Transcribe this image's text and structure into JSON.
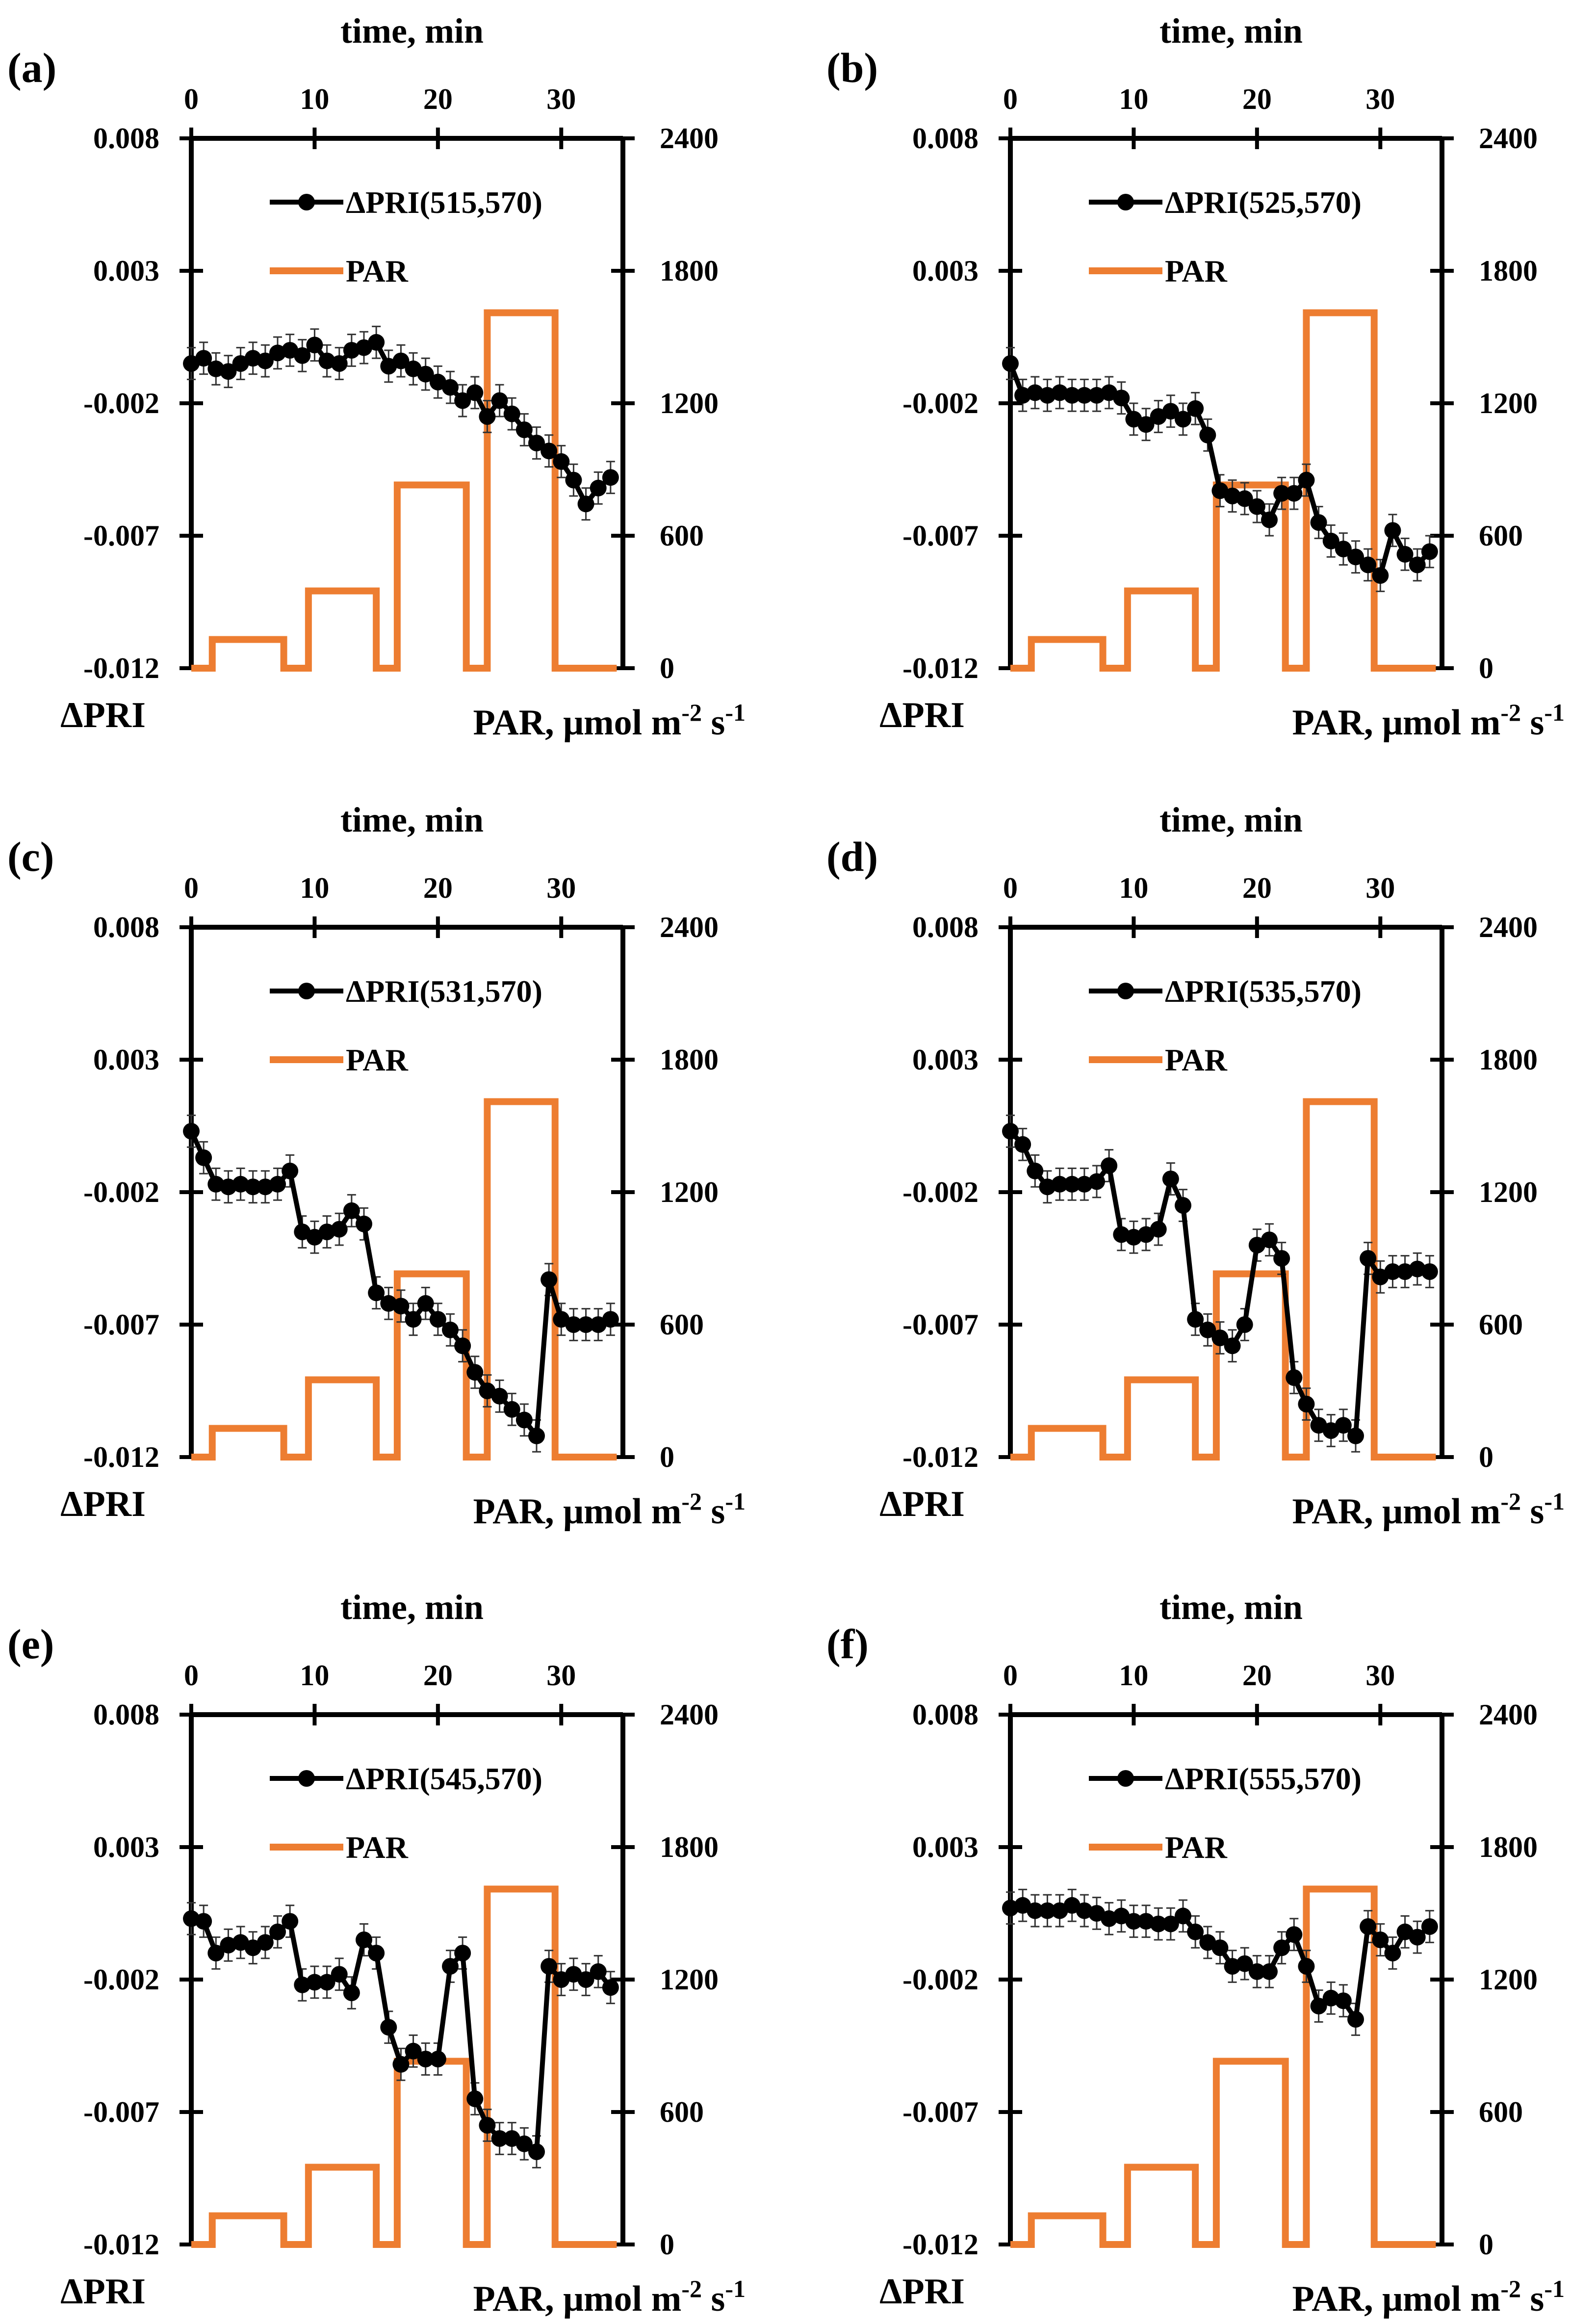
{
  "chart_data": [
    {
      "panel_label": "(a)",
      "type": "line",
      "top_axis_label": "time, min",
      "x_ticks": [
        "0",
        "10",
        "20",
        "30"
      ],
      "xlim": [
        0,
        35
      ],
      "left_axis_label": "ΔPRI",
      "left_ticks": [
        "0.008",
        "0.003",
        "-0.002",
        "-0.007",
        "-0.012"
      ],
      "ylim_left": [
        -0.012,
        0.008
      ],
      "right_axis_label": "PAR, μmol m-2 s-1",
      "right_ticks": [
        "2400",
        "1800",
        "1200",
        "600",
        "0"
      ],
      "ylim_right": [
        0,
        2400
      ],
      "legend": {
        "pri": "ΔPRI(515,570)",
        "par": "PAR"
      },
      "series": [
        {
          "name": "ΔPRI(515,570)",
          "color": "#000000",
          "x": [
            0,
            1,
            2,
            3,
            4,
            5,
            6,
            7,
            8,
            9,
            10,
            11,
            12,
            13,
            14,
            15,
            16,
            17,
            18,
            19,
            20,
            21,
            22,
            23,
            24,
            25,
            26,
            27,
            28,
            29,
            30,
            31,
            32,
            33,
            34
          ],
          "y": [
            -0.0005,
            -0.0003,
            -0.0007,
            -0.0008,
            -0.0005,
            -0.0003,
            -0.0004,
            -0.0001,
            0.0,
            -0.0002,
            0.0002,
            -0.0004,
            -0.0005,
            0.0,
            0.0001,
            0.0003,
            -0.0006,
            -0.0004,
            -0.0007,
            -0.0009,
            -0.0012,
            -0.0014,
            -0.0019,
            -0.0016,
            -0.0025,
            -0.0019,
            -0.0024,
            -0.003,
            -0.0035,
            -0.0038,
            -0.0042,
            -0.0049,
            -0.0058,
            -0.0052,
            -0.0048
          ]
        },
        {
          "name": "PAR",
          "color": "#ED7D31",
          "type": "step",
          "x": [
            0,
            1.7,
            1.7,
            7.5,
            7.5,
            9.5,
            9.5,
            15,
            15,
            16.7,
            16.7,
            22.3,
            22.3,
            24,
            24,
            29.5,
            29.5,
            34.5
          ],
          "y": [
            0,
            0,
            130,
            130,
            0,
            0,
            350,
            350,
            0,
            0,
            830,
            830,
            0,
            0,
            1610,
            1610,
            0,
            0
          ]
        }
      ]
    },
    {
      "panel_label": "(b)",
      "type": "line",
      "top_axis_label": "time, min",
      "x_ticks": [
        "0",
        "10",
        "20",
        "30"
      ],
      "xlim": [
        0,
        35
      ],
      "left_axis_label": "ΔPRI",
      "left_ticks": [
        "0.008",
        "0.003",
        "-0.002",
        "-0.007",
        "-0.012"
      ],
      "ylim_left": [
        -0.012,
        0.008
      ],
      "right_axis_label": "PAR, μmol m-2 s-1",
      "right_ticks": [
        "2400",
        "1800",
        "1200",
        "600",
        "0"
      ],
      "ylim_right": [
        0,
        2400
      ],
      "legend": {
        "pri": "ΔPRI(525,570)",
        "par": "PAR"
      },
      "series": [
        {
          "name": "ΔPRI(525,570)",
          "color": "#000000",
          "x": [
            0,
            1,
            2,
            3,
            4,
            5,
            6,
            7,
            8,
            9,
            10,
            11,
            12,
            13,
            14,
            15,
            16,
            17,
            18,
            19,
            20,
            21,
            22,
            23,
            24,
            25,
            26,
            27,
            28,
            29,
            30,
            31,
            32,
            33,
            34
          ],
          "y": [
            -0.0005,
            -0.0017,
            -0.0016,
            -0.0017,
            -0.0016,
            -0.0017,
            -0.0017,
            -0.0017,
            -0.0016,
            -0.0018,
            -0.0026,
            -0.0028,
            -0.0025,
            -0.0023,
            -0.0026,
            -0.0022,
            -0.0032,
            -0.0053,
            -0.0055,
            -0.0056,
            -0.0059,
            -0.0064,
            -0.0054,
            -0.0054,
            -0.0049,
            -0.0065,
            -0.0072,
            -0.0075,
            -0.0078,
            -0.0081,
            -0.0085,
            -0.0068,
            -0.0077,
            -0.0081,
            -0.0076
          ]
        },
        {
          "name": "PAR",
          "color": "#ED7D31",
          "type": "step",
          "x": [
            0,
            1.7,
            1.7,
            7.5,
            7.5,
            9.5,
            9.5,
            15,
            15,
            16.7,
            16.7,
            22.3,
            22.3,
            24,
            24,
            29.5,
            29.5,
            34.5
          ],
          "y": [
            0,
            0,
            130,
            130,
            0,
            0,
            350,
            350,
            0,
            0,
            830,
            830,
            0,
            0,
            1610,
            1610,
            0,
            0
          ]
        }
      ]
    },
    {
      "panel_label": "(c)",
      "type": "line",
      "top_axis_label": "time, min",
      "x_ticks": [
        "0",
        "10",
        "20",
        "30"
      ],
      "xlim": [
        0,
        35
      ],
      "left_axis_label": "ΔPRI",
      "left_ticks": [
        "0.008",
        "0.003",
        "-0.002",
        "-0.007",
        "-0.012"
      ],
      "ylim_left": [
        -0.012,
        0.008
      ],
      "right_axis_label": "PAR, μmol m-2 s-1",
      "right_ticks": [
        "2400",
        "1800",
        "1200",
        "600",
        "0"
      ],
      "ylim_right": [
        0,
        2400
      ],
      "legend": {
        "pri": "ΔPRI(531,570)",
        "par": "PAR"
      },
      "series": [
        {
          "name": "ΔPRI(531,570)",
          "color": "#000000",
          "x": [
            0,
            1,
            2,
            3,
            4,
            5,
            6,
            7,
            8,
            9,
            10,
            11,
            12,
            13,
            14,
            15,
            16,
            17,
            18,
            19,
            20,
            21,
            22,
            23,
            24,
            25,
            26,
            27,
            28,
            29,
            30,
            31,
            32,
            33,
            34
          ],
          "y": [
            0.0003,
            -0.0007,
            -0.0017,
            -0.0018,
            -0.0017,
            -0.0018,
            -0.0018,
            -0.0017,
            -0.0012,
            -0.0035,
            -0.0037,
            -0.0035,
            -0.0034,
            -0.0027,
            -0.0032,
            -0.0058,
            -0.0062,
            -0.0063,
            -0.0068,
            -0.0062,
            -0.0068,
            -0.0072,
            -0.0078,
            -0.0088,
            -0.0095,
            -0.0097,
            -0.0102,
            -0.0106,
            -0.0112,
            -0.0053,
            -0.0068,
            -0.007,
            -0.007,
            -0.007,
            -0.0068
          ]
        },
        {
          "name": "PAR",
          "color": "#ED7D31",
          "type": "step",
          "x": [
            0,
            1.7,
            1.7,
            7.5,
            7.5,
            9.5,
            9.5,
            15,
            15,
            16.7,
            16.7,
            22.3,
            22.3,
            24,
            24,
            29.5,
            29.5,
            34.5
          ],
          "y": [
            0,
            0,
            130,
            130,
            0,
            0,
            350,
            350,
            0,
            0,
            830,
            830,
            0,
            0,
            1610,
            1610,
            0,
            0
          ]
        }
      ]
    },
    {
      "panel_label": "(d)",
      "type": "line",
      "top_axis_label": "time, min",
      "x_ticks": [
        "0",
        "10",
        "20",
        "30"
      ],
      "xlim": [
        0,
        35
      ],
      "left_axis_label": "ΔPRI",
      "left_ticks": [
        "0.008",
        "0.003",
        "-0.002",
        "-0.007",
        "-0.012"
      ],
      "ylim_left": [
        -0.012,
        0.008
      ],
      "right_axis_label": "PAR, μmol m-2 s-1",
      "right_ticks": [
        "2400",
        "1800",
        "1200",
        "600",
        "0"
      ],
      "ylim_right": [
        0,
        2400
      ],
      "legend": {
        "pri": "ΔPRI(535,570)",
        "par": "PAR"
      },
      "series": [
        {
          "name": "ΔPRI(535,570)",
          "color": "#000000",
          "x": [
            0,
            1,
            2,
            3,
            4,
            5,
            6,
            7,
            8,
            9,
            10,
            11,
            12,
            13,
            14,
            15,
            16,
            17,
            18,
            19,
            20,
            21,
            22,
            23,
            24,
            25,
            26,
            27,
            28,
            29,
            30,
            31,
            32,
            33,
            34
          ],
          "y": [
            0.0003,
            -0.0002,
            -0.0012,
            -0.0018,
            -0.0017,
            -0.0017,
            -0.0017,
            -0.0016,
            -0.001,
            -0.0036,
            -0.0037,
            -0.0036,
            -0.0034,
            -0.0015,
            -0.0025,
            -0.0068,
            -0.0072,
            -0.0075,
            -0.0078,
            -0.007,
            -0.004,
            -0.0038,
            -0.0045,
            -0.009,
            -0.01,
            -0.0108,
            -0.011,
            -0.0108,
            -0.0112,
            -0.0045,
            -0.0052,
            -0.005,
            -0.005,
            -0.0049,
            -0.005
          ]
        },
        {
          "name": "PAR",
          "color": "#ED7D31",
          "type": "step",
          "x": [
            0,
            1.7,
            1.7,
            7.5,
            7.5,
            9.5,
            9.5,
            15,
            15,
            16.7,
            16.7,
            22.3,
            22.3,
            24,
            24,
            29.5,
            29.5,
            34.5
          ],
          "y": [
            0,
            0,
            130,
            130,
            0,
            0,
            350,
            350,
            0,
            0,
            830,
            830,
            0,
            0,
            1610,
            1610,
            0,
            0
          ]
        }
      ]
    },
    {
      "panel_label": "(e)",
      "type": "line",
      "top_axis_label": "time, min",
      "x_ticks": [
        "0",
        "10",
        "20",
        "30"
      ],
      "xlim": [
        0,
        35
      ],
      "left_axis_label": "ΔPRI",
      "left_ticks": [
        "0.008",
        "0.003",
        "-0.002",
        "-0.007",
        "-0.012"
      ],
      "ylim_left": [
        -0.012,
        0.008
      ],
      "right_axis_label": "PAR, μmol m-2 s-1",
      "right_ticks": [
        "2400",
        "1800",
        "1200",
        "600",
        "0"
      ],
      "ylim_right": [
        0,
        2400
      ],
      "legend": {
        "pri": "ΔPRI(545,570)",
        "par": "PAR"
      },
      "series": [
        {
          "name": "ΔPRI(545,570)",
          "color": "#000000",
          "x": [
            0,
            1,
            2,
            3,
            4,
            5,
            6,
            7,
            8,
            9,
            10,
            11,
            12,
            13,
            14,
            15,
            16,
            17,
            18,
            19,
            20,
            21,
            22,
            23,
            24,
            25,
            26,
            27,
            28,
            29,
            30,
            31,
            32,
            33,
            34
          ],
          "y": [
            0.0003,
            0.0002,
            -0.001,
            -0.0007,
            -0.0006,
            -0.0008,
            -0.0006,
            -0.0002,
            0.0002,
            -0.0022,
            -0.0021,
            -0.0021,
            -0.0018,
            -0.0025,
            -0.0005,
            -0.001,
            -0.0038,
            -0.0052,
            -0.0047,
            -0.005,
            -0.005,
            -0.0015,
            -0.001,
            -0.0065,
            -0.0075,
            -0.008,
            -0.008,
            -0.0082,
            -0.0085,
            -0.0015,
            -0.002,
            -0.0018,
            -0.002,
            -0.0017,
            -0.0023
          ]
        },
        {
          "name": "PAR",
          "color": "#ED7D31",
          "type": "step",
          "x": [
            0,
            1.7,
            1.7,
            7.5,
            7.5,
            9.5,
            9.5,
            15,
            15,
            16.7,
            16.7,
            22.3,
            22.3,
            24,
            24,
            29.5,
            29.5,
            34.5
          ],
          "y": [
            0,
            0,
            130,
            130,
            0,
            0,
            350,
            350,
            0,
            0,
            830,
            830,
            0,
            0,
            1610,
            1610,
            0,
            0
          ]
        }
      ]
    },
    {
      "panel_label": "(f)",
      "type": "line",
      "top_axis_label": "time, min",
      "x_ticks": [
        "0",
        "10",
        "20",
        "30"
      ],
      "xlim": [
        0,
        35
      ],
      "left_axis_label": "ΔPRI",
      "left_ticks": [
        "0.008",
        "0.003",
        "-0.002",
        "-0.007",
        "-0.012"
      ],
      "ylim_left": [
        -0.012,
        0.008
      ],
      "right_axis_label": "PAR, μmol m-2 s-1",
      "right_ticks": [
        "2400",
        "1800",
        "1200",
        "600",
        "0"
      ],
      "ylim_right": [
        0,
        2400
      ],
      "legend": {
        "pri": "ΔPRI(555,570)",
        "par": "PAR"
      },
      "series": [
        {
          "name": "ΔPRI(555,570)",
          "color": "#000000",
          "x": [
            0,
            1,
            2,
            3,
            4,
            5,
            6,
            7,
            8,
            9,
            10,
            11,
            12,
            13,
            14,
            15,
            16,
            17,
            18,
            19,
            20,
            21,
            22,
            23,
            24,
            25,
            26,
            27,
            28,
            29,
            30,
            31,
            32,
            33,
            34
          ],
          "y": [
            0.0007,
            0.0008,
            0.0006,
            0.0006,
            0.0006,
            0.0008,
            0.0006,
            0.0005,
            0.0003,
            0.0004,
            0.0002,
            0.0002,
            0.0001,
            0.0001,
            0.0004,
            -0.0002,
            -0.0006,
            -0.0008,
            -0.0015,
            -0.0014,
            -0.0017,
            -0.0017,
            -0.0008,
            -0.0003,
            -0.0015,
            -0.003,
            -0.0027,
            -0.0028,
            -0.0035,
            0.0,
            -0.0005,
            -0.001,
            -0.0002,
            -0.0004,
            0.0
          ]
        },
        {
          "name": "PAR",
          "color": "#ED7D31",
          "type": "step",
          "x": [
            0,
            1.7,
            1.7,
            7.5,
            7.5,
            9.5,
            9.5,
            15,
            15,
            16.7,
            16.7,
            22.3,
            22.3,
            24,
            24,
            29.5,
            29.5,
            34.5
          ],
          "y": [
            0,
            0,
            130,
            130,
            0,
            0,
            350,
            350,
            0,
            0,
            830,
            830,
            0,
            0,
            1610,
            1610,
            0,
            0
          ]
        }
      ]
    }
  ]
}
